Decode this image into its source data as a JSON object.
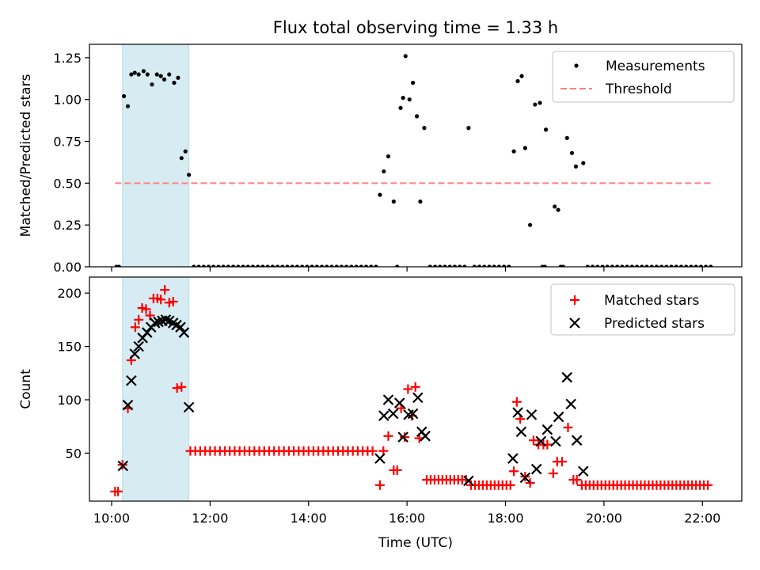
{
  "title": "Flux total observing time = 1.33 h",
  "x_label": "Time (UTC)",
  "colors": {
    "measurements": "#000000",
    "threshold": "#ff8080",
    "matched": "#ff0000",
    "predicted": "#000000",
    "shade": "#add8e6"
  },
  "chart_data": [
    {
      "type": "scatter",
      "ylabel": "Matched/Predicted stars",
      "ylim": [
        0,
        1.33
      ],
      "yticks": [
        "0.00",
        "0.25",
        "0.50",
        "0.75",
        "1.00",
        "1.25"
      ],
      "ytick_values": [
        0,
        0.25,
        0.5,
        0.75,
        1.0,
        1.25
      ],
      "legend_position": "top-right",
      "shaded_interval_hours": [
        10.22,
        11.57
      ],
      "threshold": {
        "name": "Threshold",
        "y": 0.5,
        "x_range": [
          10.07,
          22.17
        ]
      },
      "series": [
        {
          "name": "Measurements",
          "x": [
            10.1,
            10.15,
            10.25,
            10.33,
            10.4,
            10.47,
            10.55,
            10.65,
            10.73,
            10.82,
            10.92,
            11.0,
            11.07,
            11.17,
            11.27,
            11.35,
            11.42,
            11.5,
            11.57,
            15.45,
            15.53,
            15.62,
            15.73,
            15.87,
            15.92,
            15.97,
            16.05,
            16.12,
            16.2,
            16.27,
            16.35,
            17.25,
            18.17,
            18.25,
            18.33,
            18.4,
            18.5,
            18.6,
            18.7,
            18.82,
            19.0,
            19.07,
            19.25,
            19.35,
            19.43,
            19.58
          ],
          "y": [
            0,
            0,
            1.02,
            0.96,
            1.15,
            1.16,
            1.15,
            1.17,
            1.15,
            1.09,
            1.15,
            1.14,
            1.12,
            1.15,
            1.1,
            1.13,
            0.65,
            0.69,
            0.55,
            0.43,
            0.57,
            0.66,
            0.39,
            0.95,
            1.01,
            1.26,
            1.0,
            1.1,
            0.9,
            0.39,
            0.83,
            0.83,
            0.69,
            1.11,
            1.14,
            0.71,
            0.25,
            0.97,
            0.98,
            0.82,
            0.36,
            0.34,
            0.77,
            0.68,
            0.6,
            0.62
          ]
        },
        {
          "name": "zeros",
          "x_start": 11.67,
          "x_end": 22.17,
          "x_step": 0.1,
          "exclude_ranges": [
            [
              15.4,
              16.45
            ],
            [
              17.2,
              17.35
            ],
            [
              18.1,
              18.9
            ],
            [
              18.95,
              19.15
            ],
            [
              19.2,
              19.65
            ]
          ],
          "extra_x": [
            15.8,
            18.75,
            18.8,
            19.12
          ],
          "y": 0
        }
      ]
    },
    {
      "type": "scatter",
      "ylabel": "Count",
      "ylim": [
        5,
        215
      ],
      "yticks": [
        "50",
        "100",
        "150",
        "200"
      ],
      "ytick_values": [
        50,
        100,
        150,
        200
      ],
      "legend_position": "top-right",
      "shaded_interval_hours": [
        10.22,
        11.57
      ],
      "x_ticks": [
        "10:00",
        "12:00",
        "14:00",
        "16:00",
        "18:00",
        "20:00",
        "22:00"
      ],
      "x_tick_values": [
        10,
        12,
        14,
        16,
        18,
        20,
        22
      ],
      "series": [
        {
          "name": "Matched stars",
          "x": [
            10.07,
            10.13,
            10.22,
            10.33,
            10.4,
            10.48,
            10.55,
            10.62,
            10.7,
            10.78,
            10.85,
            10.93,
            11.0,
            11.08,
            11.17,
            11.25,
            11.33,
            11.42,
            11.48,
            15.45,
            15.52,
            15.62,
            15.73,
            15.8,
            15.88,
            15.95,
            16.02,
            16.1,
            16.17,
            16.25,
            16.33,
            18.17,
            18.23,
            18.3,
            18.4,
            18.5,
            18.57,
            18.67,
            18.77,
            18.85,
            18.97,
            19.05,
            19.15,
            19.27,
            19.38,
            19.45,
            19.53
          ],
          "y": [
            14,
            14,
            39,
            92,
            137,
            168,
            175,
            186,
            185,
            179,
            195,
            195,
            194,
            203,
            191,
            192,
            111,
            112,
            null,
            20,
            52,
            66,
            34,
            34,
            92,
            65,
            110,
            85,
            112,
            64,
            null,
            33,
            98,
            82,
            28,
            22,
            62,
            58,
            58,
            58,
            31,
            42,
            42,
            74,
            25,
            25,
            null
          ],
          "flat_runs": [
            {
              "y": 52,
              "x_start": 11.6,
              "x_end": 15.35,
              "x_step": 0.1
            },
            {
              "y": 25,
              "x_start": 16.4,
              "x_end": 17.25,
              "x_step": 0.08
            },
            {
              "y": 20,
              "x_start": 17.3,
              "x_end": 18.1,
              "x_step": 0.08
            },
            {
              "y": 20,
              "x_start": 19.55,
              "x_end": 22.15,
              "x_step": 0.08
            }
          ]
        },
        {
          "name": "Predicted stars",
          "x": [
            10.23,
            10.33,
            10.4,
            10.47,
            10.55,
            10.63,
            10.72,
            10.8,
            10.88,
            10.95,
            11.03,
            11.1,
            11.17,
            11.25,
            11.32,
            11.4,
            11.47,
            11.57,
            15.45,
            15.53,
            15.62,
            15.72,
            15.85,
            15.92,
            16.03,
            16.12,
            16.22,
            16.3,
            16.37,
            17.25,
            18.15,
            18.25,
            18.32,
            18.4,
            18.53,
            18.63,
            18.72,
            18.85,
            19.02,
            19.08,
            19.25,
            19.33,
            19.45,
            19.58
          ],
          "y": [
            38,
            95,
            118,
            143,
            150,
            158,
            163,
            168,
            172,
            173,
            174,
            175,
            174,
            172,
            170,
            168,
            163,
            93,
            45,
            85,
            100,
            87,
            97,
            65,
            86,
            87,
            102,
            70,
            66,
            24,
            45,
            88,
            70,
            27,
            86,
            35,
            61,
            72,
            61,
            84,
            121,
            96,
            62,
            33
          ],
          "note_last_small": []
        }
      ]
    }
  ]
}
